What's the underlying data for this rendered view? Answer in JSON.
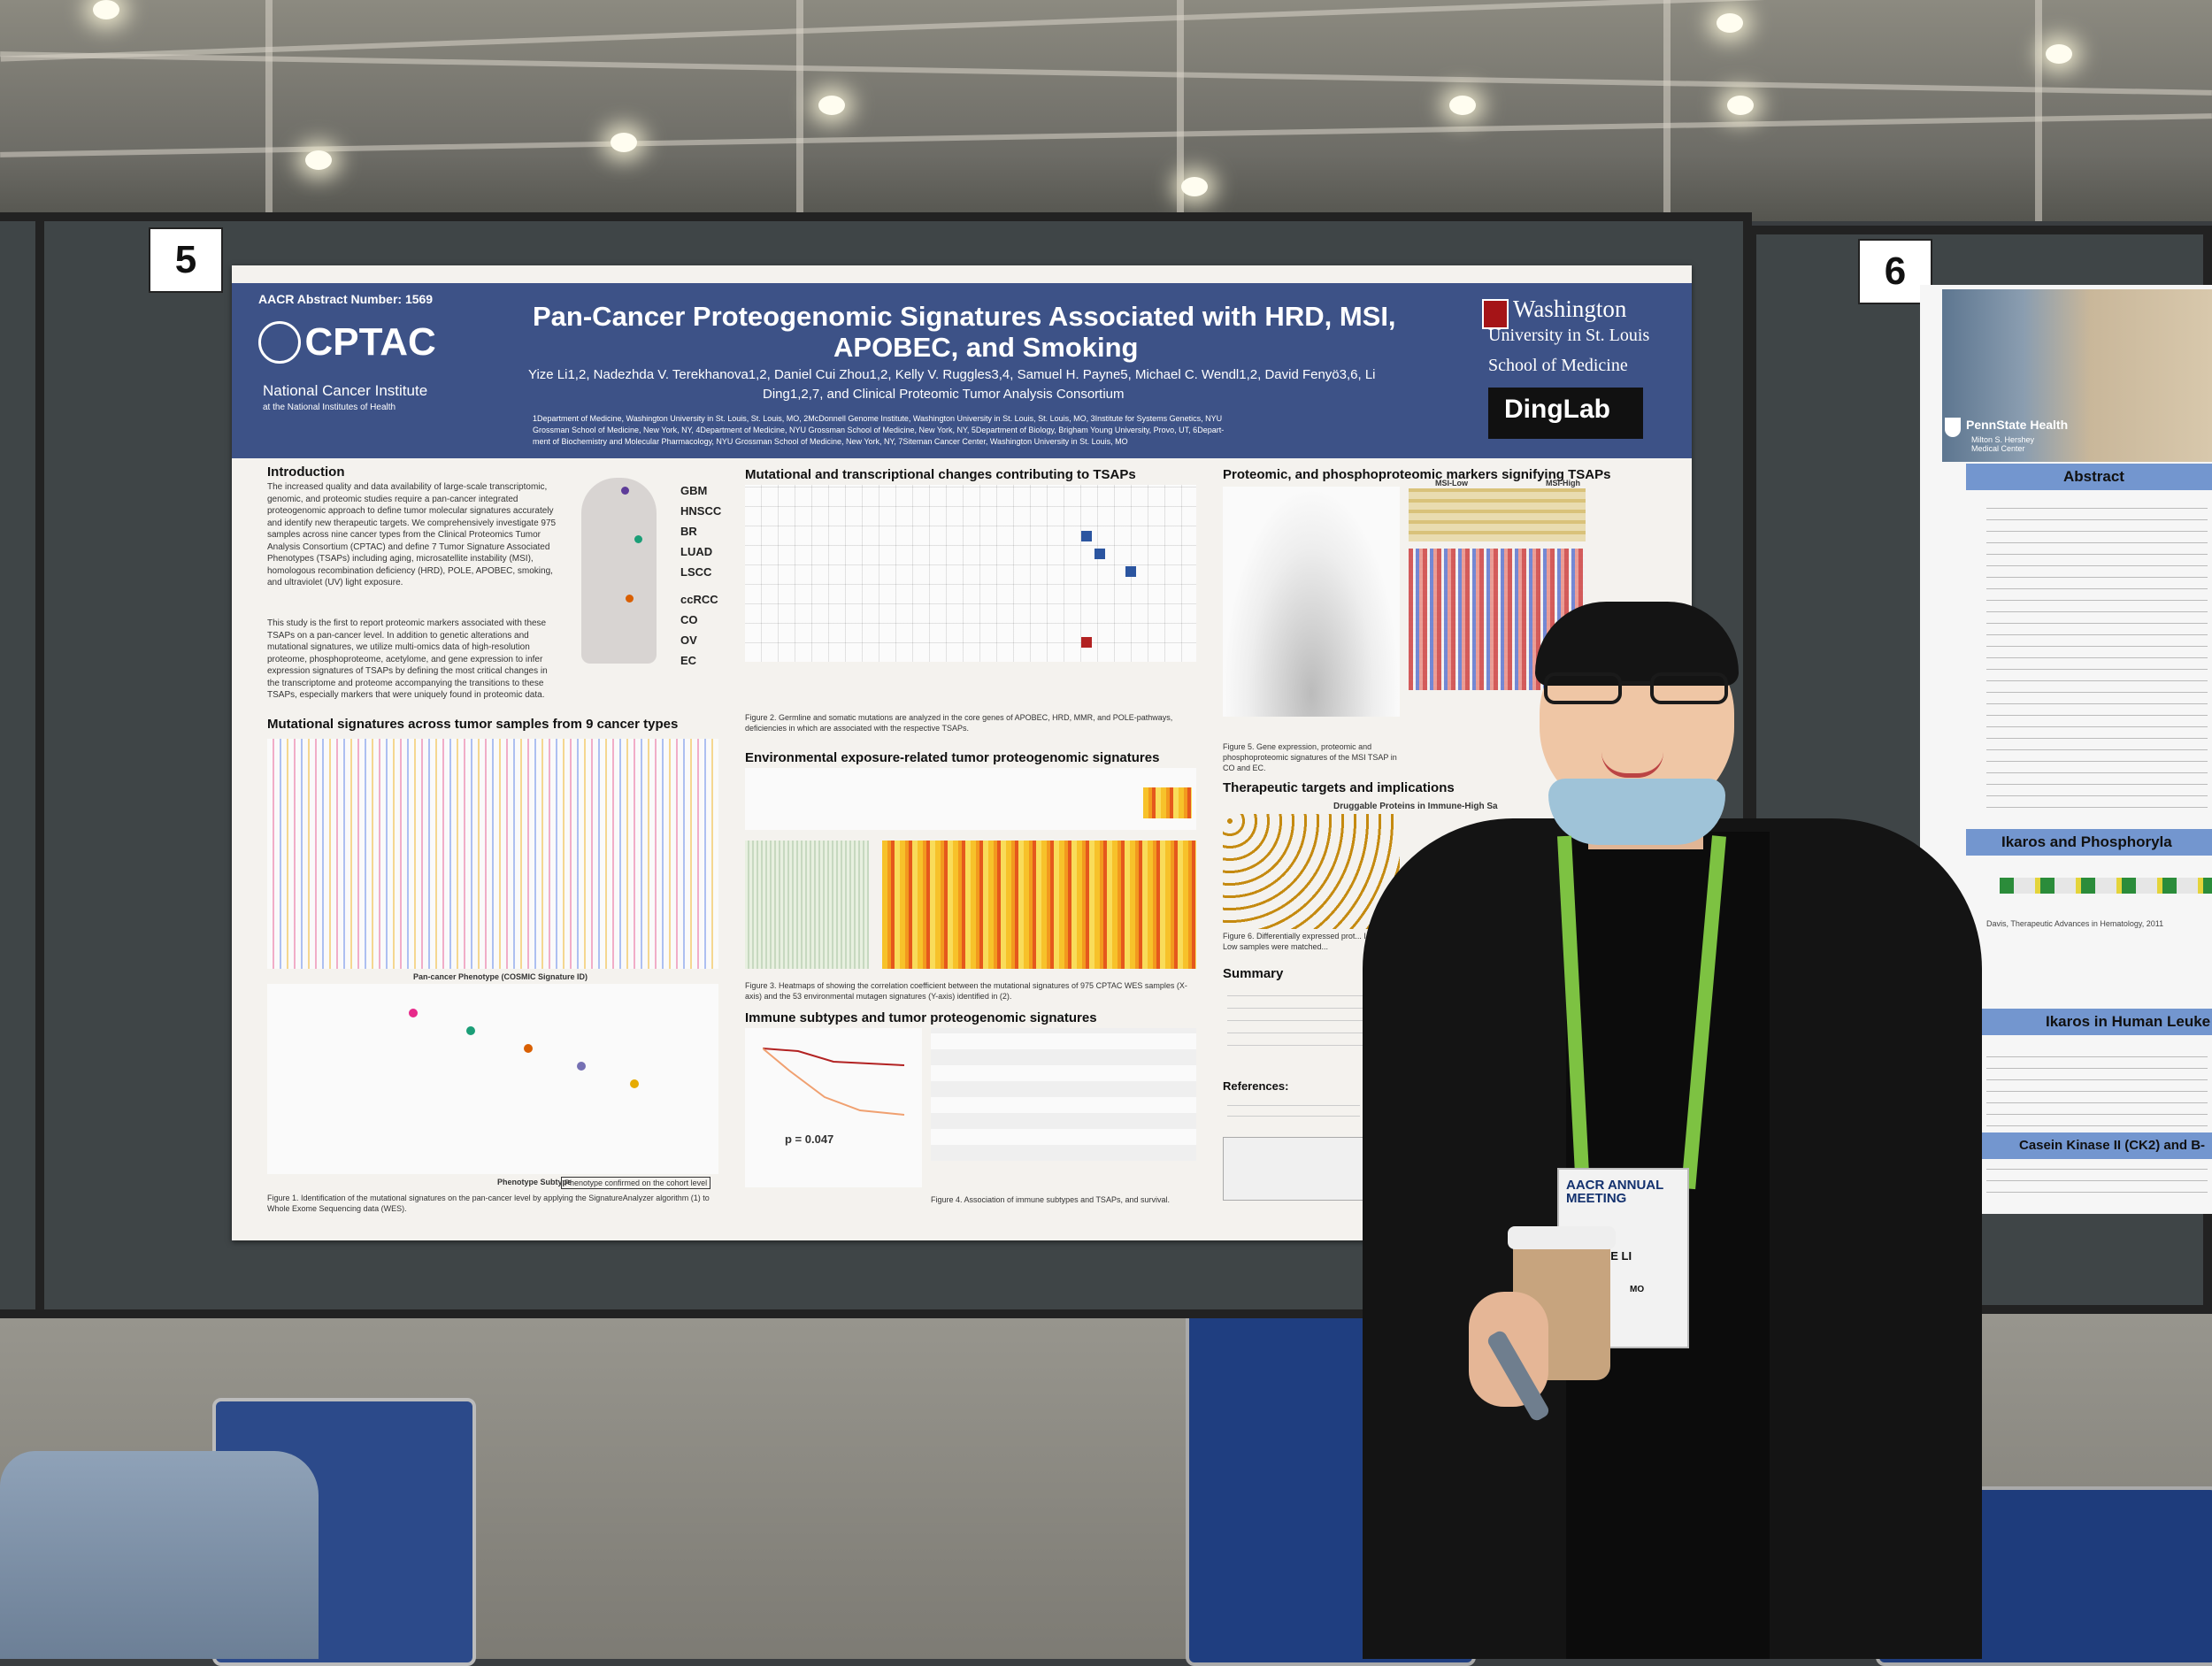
{
  "poster": {
    "abstract_number": "AACR Abstract Number:  1569",
    "title_line1": "Pan-Cancer Proteogenomic Signatures Associated with HRD, MSI,",
    "title_line2": "APOBEC, and Smoking",
    "authors_line1": "Yize Li1,2, Nadezhda V. Terekhanova1,2, Daniel Cui Zhou1,2, Kelly V. Ruggles3,4, Samuel H. Payne5, Michael C. Wendl1,2, David Fenyö3,6, Li",
    "authors_line2": "Ding1,2,7, and Clinical Proteomic Tumor Analysis Consortium",
    "affiliations_line1": "1Department of Medicine, Washington University in St. Louis, St. Louis, MO, 2McDonnell Genome Institute, Washington University in St. Louis, St. Louis, MO, 3Institute for Systems Genetics, NYU",
    "affiliations_line2": "Grossman School of Medicine, New York, NY, 4Department of Medicine, NYU Grossman School of Medicine, New York, NY, 5Department of Biology, Brigham Young University, Provo, UT, 6Depart-",
    "affiliations_line3": "ment of Biochemistry and Molecular Pharmacology, NYU Grossman School of Medicine, New York, NY, 7Siteman Cancer Center, Washington University in St. Louis, MO",
    "cptac_logo": "CPTAC",
    "nci_line1": "National Cancer Institute",
    "nci_line2": "at the National Institutes of Health",
    "wustl_line1": "Washington",
    "wustl_line2": "University in St. Louis",
    "wustl_line3": "School of Medicine",
    "dinglab": "DingLab",
    "intro_heading": "Introduction",
    "intro_text": "The increased quality and data availability of large-scale transcriptomic, genomic, and proteomic studies require a pan-cancer integrated proteogenomic approach to define tumor molecular signatures accurately and identify new therapeutic targets. We comprehensively investigate 975 samples across nine cancer types from the Clinical Proteomics Tumor Analysis Consortium (CPTAC) and define 7 Tumor Signature Associated Phenotypes (TSAPs) including aging, microsatellite instability (MSI), homologous recombination deficiency (HRD), POLE, APOBEC, smoking, and ultraviolet (UV) light exposure.",
    "intro_text2": "This study is the first to report proteomic markers associated with these TSAPs on a pan-cancer level. In addition to genetic alterations and mutational signatures, we utilize multi-omics data of high-resolution proteome, phosphoproteome, acetylome, and gene expression to infer expression signatures of TSAPs by defining the most critical changes in the transcriptome and proteome accompanying the transitions to these TSAPs, especially markers that were uniquely found in proteomic data.",
    "cancer_labels": [
      "GBM",
      "HNSCC",
      "BR",
      "LUAD",
      "LSCC",
      "ccRCC",
      "CO",
      "OV",
      "EC"
    ],
    "sec_mutational_signatures": "Mutational signatures across tumor samples from 9 cancer types",
    "sec_mutational_changes": "Mutational and transcriptional changes contributing to TSAPs",
    "sec_environmental": "Environmental exposure-related tumor proteogenomic signatures",
    "sec_immune": "Immune subtypes and tumor proteogenomic signatures",
    "sec_proteomic_markers": "Proteomic, and phosphoproteomic markers signifying TSAPs",
    "sec_therapeutic": "Therapeutic targets and implications",
    "druggable": "Druggable Proteins in Immune-High Sa",
    "summary_heading": "Summary",
    "references_heading": "References:",
    "msi_low": "MSI-Low",
    "msi_high": "MSI-High",
    "p_value": "p = 0.047",
    "phenotype_subtype": "Phenotype Subtype",
    "phenotype_confirmed": "Phenotype confirmed on the cohort level",
    "pan_cancer_phenotype": "Pan-cancer Phenotype (COSMIC Signature ID)",
    "figure1_caption": "Figure 1. Identification of the mutational signatures on the pan-cancer level by applying the SignatureAnalyzer algorithm (1) to Whole Exome Sequencing data (WES).",
    "figure2_caption": "Figure 2. Germline and somatic mutations are analyzed in the core genes of APOBEC, HRD, MMR, and POLE-pathways, deficiencies in which are associated with the respective TSAPs.",
    "figure3_caption": "Figure 3. Heatmaps of showing the correlation coefficient between the mutational signatures of 975 CPTAC WES samples (X-axis) and the 53 environmental mutagen signatures (Y-axis) identified in (2).",
    "figure4_caption": "Figure 4. Association of immune subtypes and TSAPs, and survival.",
    "figure5_caption": "Figure 5. Gene expression, proteomic and phosphoproteomic signatures of the MSI TSAP in CO and EC.",
    "figure6_caption": "Figure 6. Differentially expressed prot... Immune-Low samples were matched..."
  },
  "board_numbers": [
    "5",
    "6"
  ],
  "poster2": {
    "institution": "PennState Health",
    "institution_sub": "Milton S. Hershey Medical Center",
    "abstract_heading": "Abstract",
    "ikaros_phospho": "Ikaros and Phosphoryla",
    "ikaros_human": "Ikaros in Human Leuke",
    "casein_kinase": "Casein Kinase II (CK2) and B-",
    "davis_ref": "Davis, Therapeutic Advances in Hematology, 2011"
  },
  "badge": {
    "event": "AACR ANNUAL MEETING",
    "name": "YIZE LI",
    "state": "MO"
  },
  "colors": {
    "poster_header": "#3d5287",
    "board": "#3f4547",
    "lanyard": "#7dc242",
    "blue_bar": "#7396cf"
  }
}
